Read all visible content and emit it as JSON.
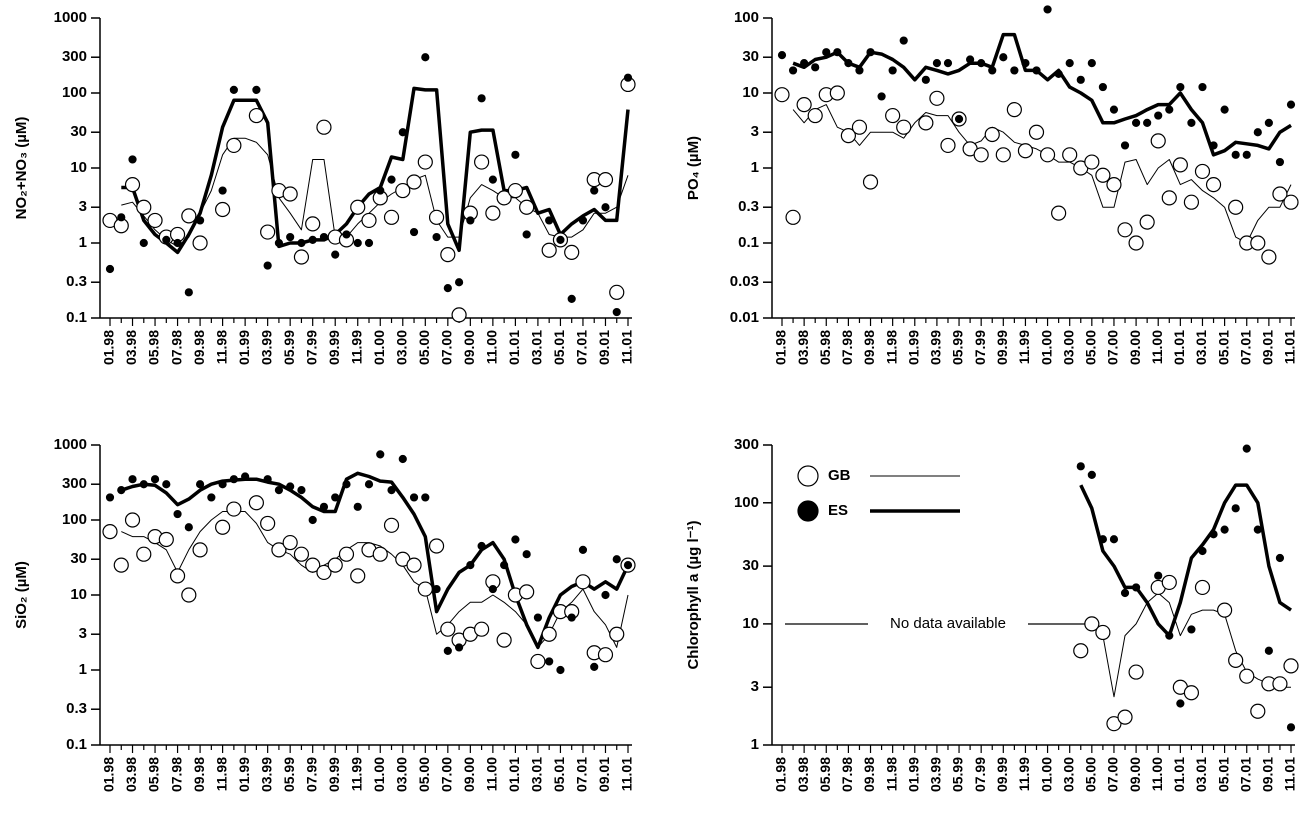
{
  "chart_data": [
    {
      "type": "line",
      "ylabel": "NO₂+NO₃ (µM)",
      "log_y": true,
      "ylim": [
        0.1,
        1000
      ],
      "yticks": [
        0.1,
        0.3,
        1,
        3,
        10,
        30,
        100,
        300,
        1000
      ],
      "categories": [
        "01.98",
        null,
        "03.98",
        null,
        "05.98",
        null,
        "07.98",
        null,
        "09.98",
        null,
        "11.98",
        null,
        "01.99",
        null,
        "03.99",
        null,
        "05.99",
        null,
        "07.99",
        null,
        "09.99",
        null,
        "11.99",
        null,
        "01.00",
        null,
        "03.00",
        null,
        "05.00",
        null,
        "07.00",
        null,
        "09.00",
        null,
        "11.00",
        null,
        "01.01",
        null,
        "03.01",
        null,
        "05.01",
        null,
        "07.01",
        null,
        "09.01",
        null,
        "11.01"
      ],
      "series": [
        {
          "color": "#000000",
          "marker": "open",
          "line_width": 1,
          "values": [
            2,
            1.7,
            6,
            3,
            2,
            1.2,
            1.3,
            2.3,
            1,
            null,
            2.8,
            20,
            null,
            50,
            1.4,
            5,
            4.5,
            0.65,
            1.8,
            35,
            1.2,
            1.1,
            3,
            2,
            4,
            2.2,
            5,
            6.5,
            12,
            2.2,
            0.7,
            0.11,
            2.5,
            12,
            2.5,
            4,
            5,
            3,
            null,
            0.8,
            1.1,
            0.75,
            null,
            7,
            7,
            0.22,
            130
          ],
          "trend": [
            null,
            3.2,
            3.5,
            2.3,
            1.5,
            1.1,
            0.9,
            1.2,
            2.5,
            5,
            15,
            25,
            25,
            22,
            15,
            4,
            2.5,
            1.5,
            13,
            13,
            1.2,
            1.2,
            1.8,
            2.5,
            3.5,
            4.5,
            5.5,
            7,
            8,
            2,
            1.2,
            1.2,
            4,
            6,
            5,
            4,
            4,
            3,
            2.5,
            1.3,
            1.2,
            1.2,
            1.5,
            2.5,
            2.5,
            3,
            8
          ]
        },
        {
          "color": "#000000",
          "marker": "filled",
          "line_width": 3.5,
          "values": [
            0.45,
            2.2,
            13,
            1,
            null,
            1.1,
            1,
            0.22,
            2,
            null,
            5,
            110,
            null,
            110,
            0.5,
            1,
            1.2,
            1,
            1.1,
            1.2,
            0.7,
            1.3,
            1,
            1,
            5,
            7,
            30,
            1.4,
            300,
            1.2,
            0.25,
            0.3,
            2,
            85,
            7,
            null,
            15,
            1.3,
            null,
            2,
            1.1,
            0.18,
            2,
            5,
            3,
            0.12,
            160
          ],
          "trend": [
            null,
            5.5,
            5.5,
            2,
            1.3,
            1,
            0.75,
            1.3,
            2.5,
            8,
            35,
            80,
            80,
            80,
            40,
            0.9,
            1,
            1,
            1.1,
            1.1,
            1.3,
            1.8,
            3,
            4.5,
            5.5,
            14,
            13,
            115,
            110,
            110,
            1.8,
            0.8,
            30,
            32,
            32,
            5,
            5,
            5.5,
            2.5,
            2.8,
            1.3,
            1.8,
            2.3,
            2.8,
            2,
            2,
            60
          ]
        }
      ]
    },
    {
      "type": "line",
      "ylabel": "PO₄ (µM)",
      "log_y": true,
      "ylim": [
        0.01,
        100
      ],
      "yticks": [
        0.01,
        0.03,
        0.1,
        0.3,
        1,
        3,
        10,
        30,
        100
      ],
      "categories": [
        "01.98",
        null,
        "03.98",
        null,
        "05.98",
        null,
        "07.98",
        null,
        "09.98",
        null,
        "11.98",
        null,
        "01.99",
        null,
        "03.99",
        null,
        "05.99",
        null,
        "07.99",
        null,
        "09.99",
        null,
        "11.99",
        null,
        "01.00",
        null,
        "03.00",
        null,
        "05.00",
        null,
        "07.00",
        null,
        "09.00",
        null,
        "11.00",
        null,
        "01.01",
        null,
        "03.01",
        null,
        "05.01",
        null,
        "07.01",
        null,
        "09.01",
        null,
        "11.01"
      ],
      "series": [
        {
          "color": "#000000",
          "marker": "open",
          "line_width": 1,
          "values": [
            9.5,
            0.22,
            7,
            5,
            9.5,
            10,
            2.7,
            3.5,
            0.65,
            null,
            5,
            3.5,
            null,
            4,
            8.5,
            2,
            4.5,
            1.8,
            1.5,
            2.8,
            1.5,
            6,
            1.7,
            3,
            1.5,
            0.25,
            1.5,
            1,
            1.2,
            0.8,
            0.6,
            0.15,
            0.1,
            0.19,
            2.3,
            0.4,
            1.1,
            0.35,
            0.9,
            0.6,
            null,
            0.3,
            0.1,
            0.1,
            0.065,
            0.45,
            0.35
          ],
          "trend": [
            null,
            6,
            4,
            6,
            7,
            3.5,
            3,
            2,
            3,
            3,
            3,
            2.5,
            4,
            5.5,
            5,
            5,
            3,
            2,
            2.3,
            3.5,
            3,
            2.2,
            2,
            1.8,
            1.5,
            1.2,
            1.2,
            1,
            0.8,
            0.3,
            0.3,
            1.2,
            1.3,
            0.6,
            1,
            1.3,
            0.6,
            0.7,
            0.5,
            0.4,
            0.3,
            0.12,
            0.1,
            0.2,
            0.3,
            0.3,
            0.6
          ]
        },
        {
          "color": "#000000",
          "marker": "filled",
          "line_width": 3.5,
          "values": [
            32,
            20,
            25,
            22,
            35,
            35,
            25,
            20,
            35,
            9,
            20,
            50,
            null,
            15,
            25,
            25,
            4.5,
            28,
            25,
            20,
            30,
            20,
            25,
            20,
            130,
            18,
            25,
            15,
            25,
            12,
            6,
            2,
            4,
            4,
            5,
            6,
            12,
            4,
            12,
            2,
            6,
            1.5,
            1.5,
            3,
            4,
            1.2,
            7
          ],
          "trend": [
            null,
            25,
            22,
            28,
            30,
            35,
            25,
            22,
            35,
            33,
            28,
            22,
            15,
            22,
            20,
            18,
            20,
            25,
            25,
            22,
            60,
            60,
            20,
            20,
            15,
            20,
            12,
            10,
            8,
            4,
            4,
            4.5,
            5,
            6,
            7,
            7,
            10,
            6,
            4,
            1.5,
            1.7,
            2.2,
            2.1,
            2,
            1.8,
            3,
            3.7
          ]
        }
      ]
    },
    {
      "type": "line",
      "ylabel": "SiO₂ (µM)",
      "log_y": true,
      "ylim": [
        0.1,
        1000
      ],
      "yticks": [
        0.1,
        0.3,
        1,
        3,
        10,
        30,
        100,
        300,
        1000
      ],
      "categories": [
        "01.98",
        null,
        "03.98",
        null,
        "05.98",
        null,
        "07.98",
        null,
        "09.98",
        null,
        "11.98",
        null,
        "01.99",
        null,
        "03.99",
        null,
        "05.99",
        null,
        "07.99",
        null,
        "09.99",
        null,
        "11.99",
        null,
        "01.00",
        null,
        "03.00",
        null,
        "05.00",
        null,
        "07.00",
        null,
        "09.00",
        null,
        "11.00",
        null,
        "01.01",
        null,
        "03.01",
        null,
        "05.01",
        null,
        "07.01",
        null,
        "09.01",
        null,
        "11.01"
      ],
      "series": [
        {
          "color": "#000000",
          "marker": "open",
          "line_width": 1,
          "values": [
            70,
            25,
            100,
            35,
            60,
            55,
            18,
            10,
            40,
            null,
            80,
            140,
            null,
            170,
            90,
            40,
            50,
            35,
            25,
            20,
            25,
            35,
            18,
            40,
            35,
            85,
            30,
            25,
            12,
            45,
            3.5,
            2.5,
            3,
            3.5,
            15,
            2.5,
            10,
            11,
            1.3,
            3,
            6,
            6,
            15,
            1.7,
            1.6,
            3,
            25
          ],
          "trend": [
            null,
            70,
            60,
            60,
            50,
            40,
            20,
            40,
            70,
            100,
            130,
            130,
            130,
            90,
            50,
            40,
            35,
            25,
            20,
            25,
            30,
            40,
            50,
            50,
            45,
            35,
            25,
            15,
            12,
            3,
            4,
            6,
            8,
            8,
            10,
            8,
            6,
            4,
            2,
            3,
            6,
            8,
            12,
            6,
            4,
            2,
            10
          ]
        },
        {
          "color": "#000000",
          "marker": "filled",
          "line_width": 3.5,
          "values": [
            200,
            250,
            350,
            300,
            350,
            300,
            120,
            80,
            300,
            200,
            300,
            350,
            380,
            null,
            350,
            250,
            280,
            250,
            100,
            150,
            200,
            300,
            150,
            300,
            750,
            250,
            650,
            200,
            200,
            12,
            1.8,
            2,
            25,
            45,
            12,
            25,
            55,
            35,
            5,
            1.3,
            1,
            5,
            40,
            1.1,
            10,
            30,
            25
          ],
          "trend": [
            null,
            250,
            280,
            300,
            290,
            230,
            160,
            190,
            250,
            300,
            330,
            340,
            350,
            350,
            320,
            300,
            250,
            200,
            150,
            130,
            130,
            350,
            420,
            380,
            330,
            320,
            200,
            120,
            60,
            6,
            12,
            20,
            25,
            40,
            50,
            30,
            10,
            4,
            2,
            5,
            10,
            13,
            15,
            12,
            15,
            12,
            25
          ]
        }
      ]
    },
    {
      "type": "line",
      "ylabel": "Chlorophyll a (µg l⁻¹)",
      "log_y": true,
      "ylim": [
        1,
        300
      ],
      "yticks": [
        1,
        3,
        10,
        30,
        100,
        300
      ],
      "annotation": "No data available",
      "legend": "upper left",
      "categories": [
        "01.98",
        null,
        "03.98",
        null,
        "05.98",
        null,
        "07.98",
        null,
        "09.98",
        null,
        "11.98",
        null,
        "01.99",
        null,
        "03.99",
        null,
        "05.99",
        null,
        "07.99",
        null,
        "09.99",
        null,
        "11.99",
        null,
        "01.00",
        null,
        "03.00",
        null,
        "05.00",
        null,
        "07.00",
        null,
        "09.00",
        null,
        "11.00",
        null,
        "01.01",
        null,
        "03.01",
        null,
        "05.01",
        null,
        "07.01",
        null,
        "09.01",
        null,
        "11.01"
      ],
      "series": [
        {
          "name": "GB",
          "color": "#000000",
          "marker": "open",
          "line_width": 1,
          "values": [
            null,
            null,
            null,
            null,
            null,
            null,
            null,
            null,
            null,
            null,
            null,
            null,
            null,
            null,
            null,
            null,
            null,
            null,
            null,
            null,
            null,
            null,
            null,
            null,
            null,
            null,
            null,
            6,
            10,
            8.5,
            1.5,
            1.7,
            4,
            null,
            20,
            22,
            3,
            2.7,
            20,
            null,
            13,
            5,
            3.7,
            1.9,
            3.2,
            3.2,
            4.5
          ],
          "trend": [
            null,
            null,
            null,
            null,
            null,
            null,
            null,
            null,
            null,
            null,
            null,
            null,
            null,
            null,
            null,
            null,
            null,
            null,
            null,
            null,
            null,
            null,
            null,
            null,
            null,
            null,
            null,
            null,
            10,
            8,
            2.5,
            8,
            10,
            15,
            18,
            15,
            8,
            12,
            13,
            13,
            12,
            6,
            4,
            3.5,
            3.2,
            3,
            3
          ]
        },
        {
          "name": "ES",
          "color": "#000000",
          "marker": "filled",
          "line_width": 3.5,
          "values": [
            null,
            null,
            null,
            null,
            null,
            null,
            null,
            null,
            null,
            null,
            null,
            null,
            null,
            null,
            null,
            null,
            null,
            null,
            null,
            null,
            null,
            null,
            null,
            null,
            null,
            null,
            null,
            200,
            170,
            50,
            50,
            18,
            20,
            null,
            25,
            8,
            2.2,
            9,
            40,
            55,
            60,
            90,
            280,
            60,
            6,
            35,
            1.4
          ],
          "trend": [
            null,
            null,
            null,
            null,
            null,
            null,
            null,
            null,
            null,
            null,
            null,
            null,
            null,
            null,
            null,
            null,
            null,
            null,
            null,
            null,
            null,
            null,
            null,
            null,
            null,
            null,
            null,
            140,
            90,
            40,
            30,
            20,
            20,
            15,
            10,
            8,
            15,
            35,
            45,
            60,
            100,
            140,
            140,
            100,
            30,
            15,
            13
          ]
        }
      ]
    }
  ]
}
